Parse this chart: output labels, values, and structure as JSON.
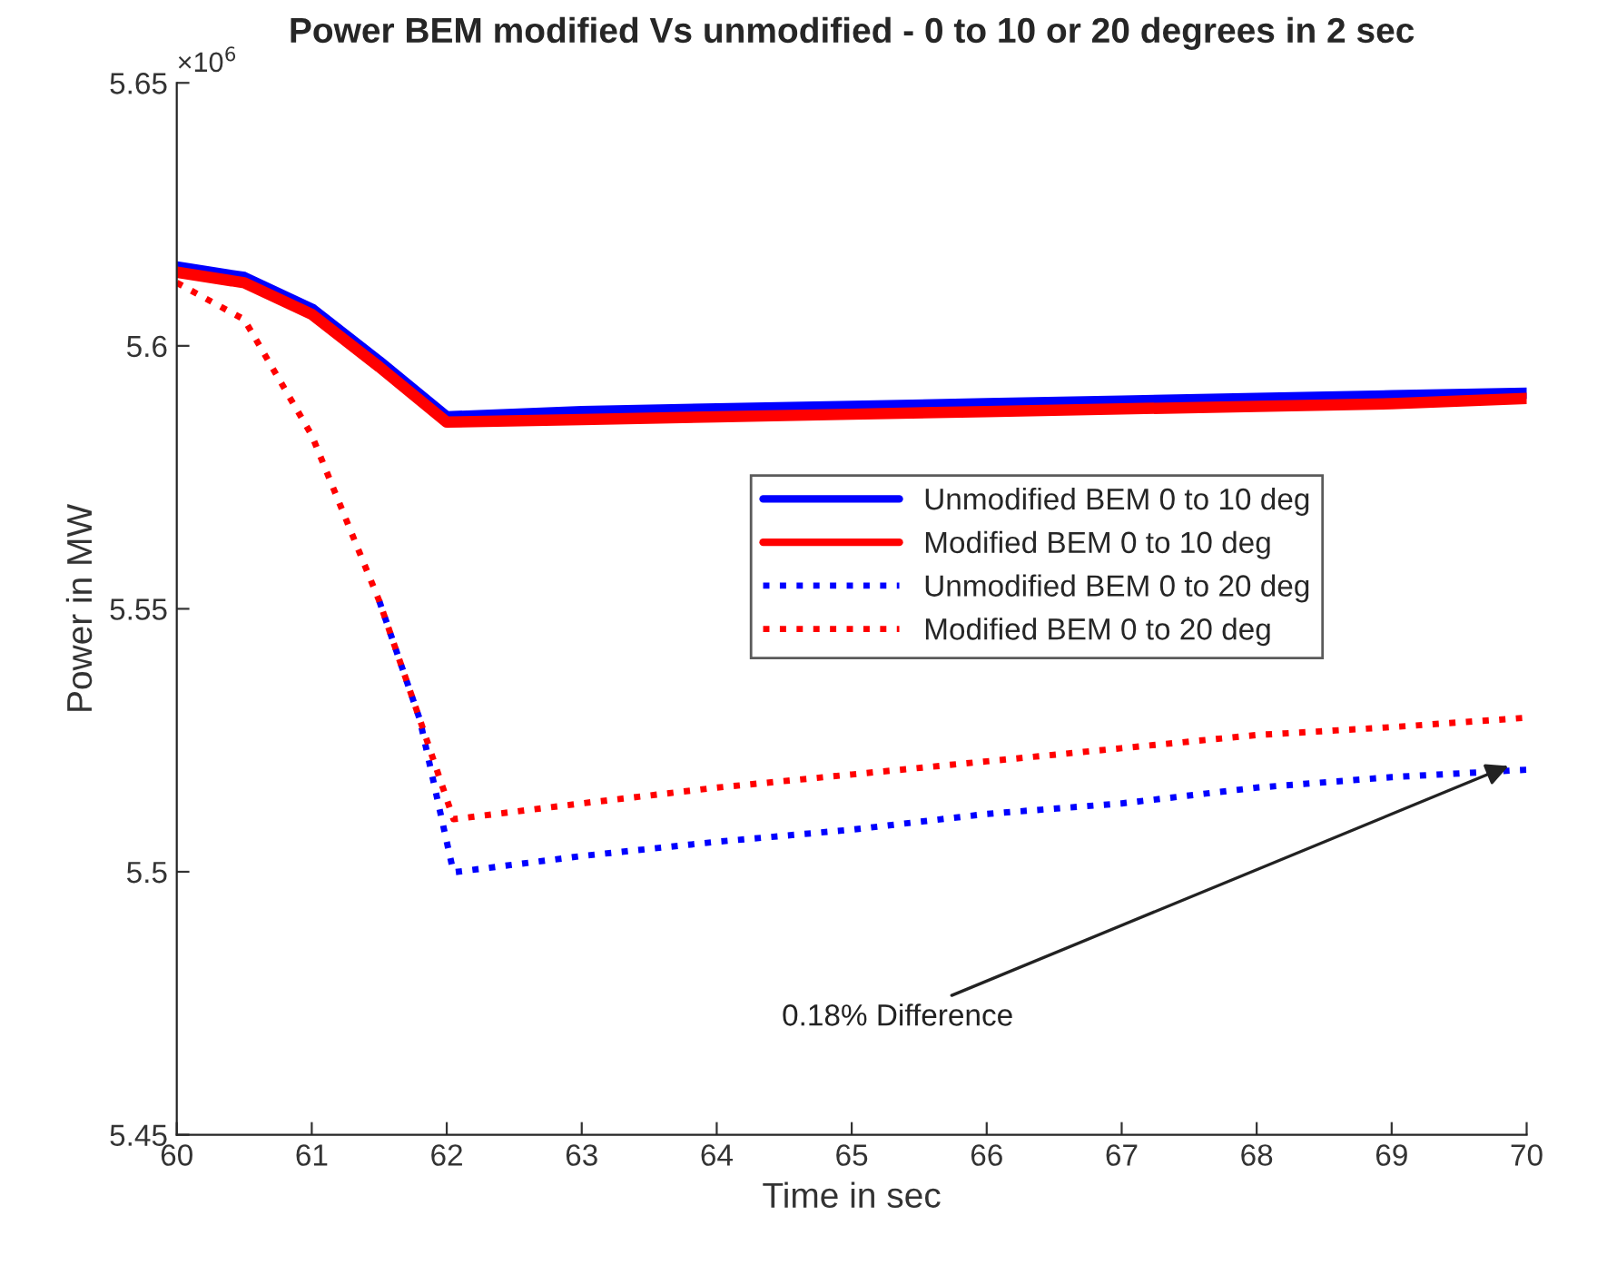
{
  "chart_data": {
    "type": "line",
    "title": "Power BEM modified Vs unmodified - 0 to 10 or 20 degrees in 2 sec",
    "xlabel": "Time in sec",
    "ylabel": "Power in MW",
    "x": [
      60,
      60.5,
      61,
      61.5,
      62,
      63,
      64,
      65,
      66,
      67,
      68,
      69,
      70
    ],
    "series": [
      {
        "name": "Unmodified BEM 0 to 10 deg",
        "color": "#0000ff",
        "line_style": "solid",
        "values": [
          5.615,
          5.613,
          5.607,
          5.597,
          5.5865,
          5.5875,
          5.588,
          5.5885,
          5.589,
          5.5895,
          5.59,
          5.5905,
          5.591
        ]
      },
      {
        "name": "Modified BEM 0 to 10 deg",
        "color": "#ff0000",
        "line_style": "solid",
        "values": [
          5.614,
          5.612,
          5.606,
          5.596,
          5.5855,
          5.586,
          5.5865,
          5.587,
          5.5875,
          5.588,
          5.5885,
          5.589,
          5.59
        ]
      },
      {
        "name": "Unmodified BEM 0 to 20 deg",
        "color": "#0000ff",
        "line_style": "dotted",
        "x": [
          61.5,
          61.8,
          62.05,
          63,
          64,
          65,
          66,
          67,
          68,
          69,
          70
        ],
        "values": [
          5.5515,
          5.529,
          5.4999,
          5.503,
          5.5057,
          5.508,
          5.511,
          5.513,
          5.516,
          5.518,
          5.5194
        ]
      },
      {
        "name": "Modified BEM 0 to 20 deg",
        "color": "#ff0000",
        "line_style": "dotted",
        "x": [
          60,
          60.5,
          61,
          61.5,
          61.8,
          62.05,
          63,
          64,
          65,
          66,
          67,
          68,
          69,
          70
        ],
        "values": [
          5.612,
          5.605,
          5.583,
          5.5515,
          5.529,
          5.51,
          5.513,
          5.516,
          5.5185,
          5.521,
          5.5235,
          5.526,
          5.5275,
          5.5293
        ]
      }
    ],
    "xlim": [
      60,
      70
    ],
    "xticks": [
      60,
      61,
      62,
      63,
      64,
      65,
      66,
      67,
      68,
      69,
      70
    ],
    "ylim": [
      5.45,
      5.65
    ],
    "yticks": [
      5.45,
      5.5,
      5.55,
      5.6,
      5.65
    ],
    "grid": false,
    "legend": "right",
    "marker": "none",
    "annotations": [
      "×10$^{6}$",
      {
        "text": "0.18% Difference",
        "x": 69.9,
        "y": 5.5205
      }
    ]
  }
}
